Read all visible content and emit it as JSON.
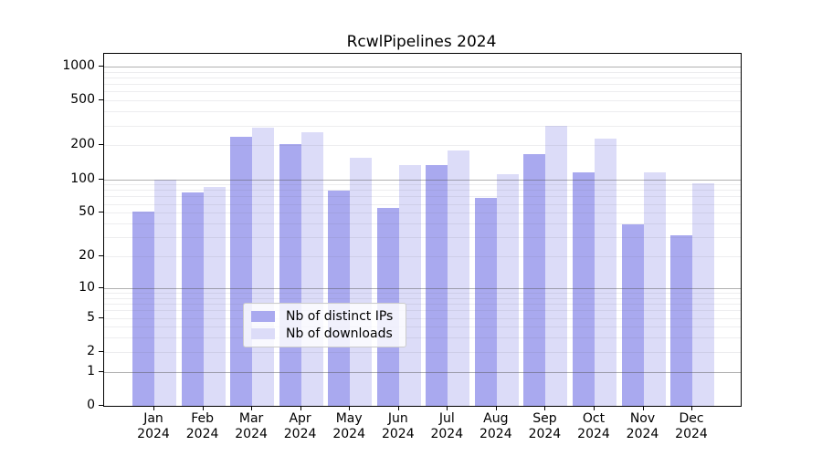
{
  "chart_data": {
    "type": "bar",
    "title": "RcwlPipelines 2024",
    "categories": [
      "Jan",
      "Feb",
      "Mar",
      "Apr",
      "May",
      "Jun",
      "Jul",
      "Aug",
      "Sep",
      "Oct",
      "Nov",
      "Dec"
    ],
    "category_year": "2024",
    "series": [
      {
        "name": "Nb of distinct IPs",
        "color": "#a9a9ef",
        "values": [
          51,
          76,
          238,
          205,
          79,
          55,
          134,
          68,
          168,
          115,
          39,
          31
        ]
      },
      {
        "name": "Nb of downloads",
        "color": "#dcdcf8",
        "values": [
          100,
          86,
          290,
          262,
          154,
          133,
          179,
          110,
          296,
          230,
          116,
          92
        ]
      }
    ],
    "yscale": "log10(1+x)",
    "ylim": [
      0,
      1300
    ],
    "yticks": [
      1000,
      500,
      200,
      100,
      50,
      20,
      10,
      5,
      2,
      1,
      0
    ],
    "grid_major": [
      1,
      10,
      100,
      1000
    ],
    "grid_minor": [
      2,
      3,
      4,
      5,
      6,
      7,
      8,
      9,
      20,
      30,
      40,
      50,
      60,
      70,
      80,
      90,
      200,
      300,
      400,
      500,
      600,
      700,
      800,
      900
    ],
    "legend_position": "lower-center",
    "xlabel": "",
    "ylabel": ""
  }
}
